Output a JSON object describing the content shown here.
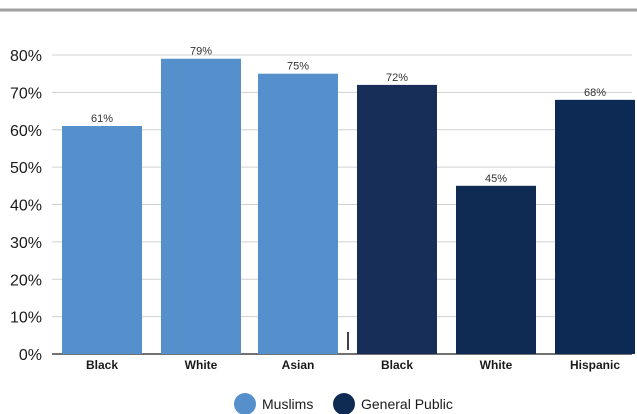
{
  "chart_data": {
    "type": "bar",
    "categories": [
      "Black",
      "White",
      "Asian",
      "Black",
      "White",
      "Hispanic"
    ],
    "series": [
      {
        "name": "Muslims",
        "color": "#5590cc",
        "values": [
          61,
          79,
          75,
          null,
          null,
          null
        ]
      },
      {
        "name": "General Public",
        "color": "#0f2b53",
        "values": [
          null,
          null,
          null,
          72,
          45,
          68
        ]
      }
    ],
    "bar_colors": [
      "#5590cc",
      "#5590cc",
      "#5590cc",
      "#172f58",
      "#0f2b53",
      "#0d2a55"
    ],
    "data_labels": [
      "61%",
      "79%",
      "75%",
      "72%",
      "45%",
      "68%"
    ],
    "y_ticks": [
      0,
      10,
      20,
      30,
      40,
      50,
      60,
      70,
      80
    ],
    "y_tick_labels": [
      "0%",
      "10%",
      "20%",
      "30%",
      "40%",
      "50%",
      "60%",
      "70%",
      "80%"
    ],
    "ylim": [
      0,
      80
    ],
    "grid": true,
    "legend_position": "bottom-center",
    "title": "",
    "xlabel": "",
    "ylabel": ""
  }
}
